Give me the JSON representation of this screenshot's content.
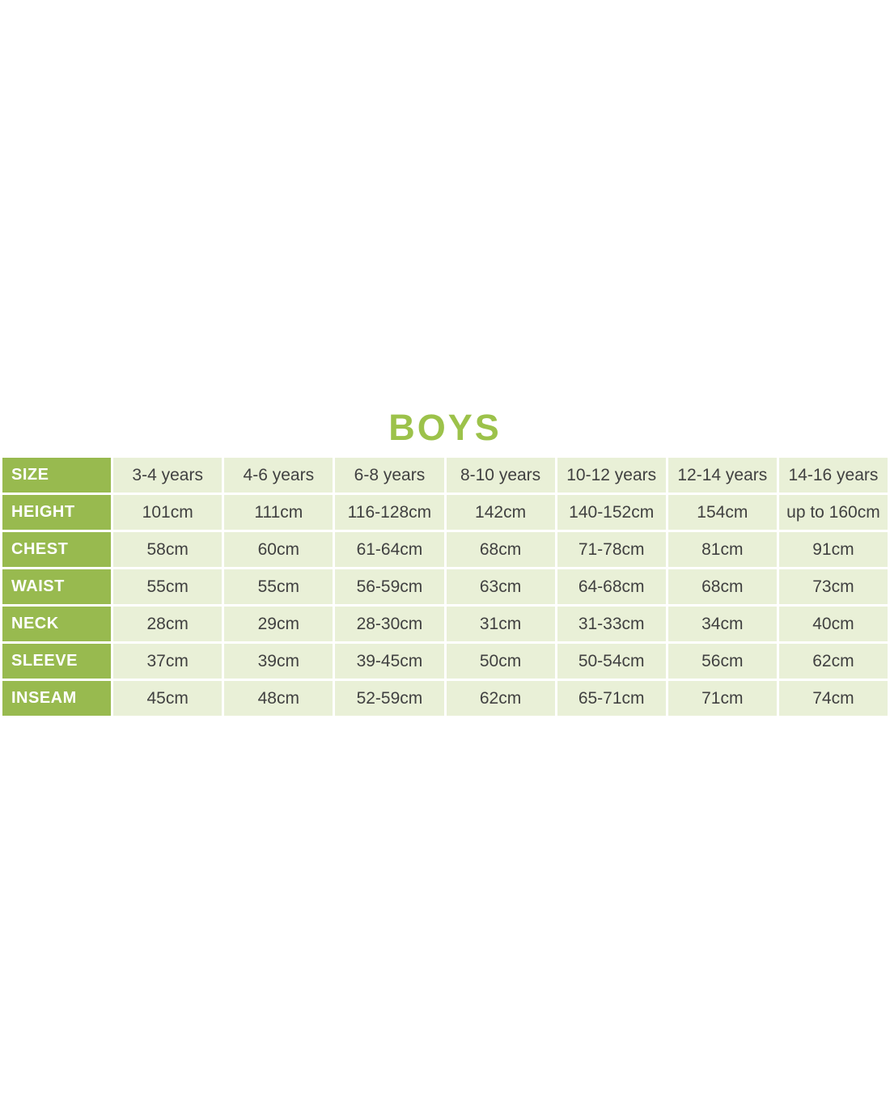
{
  "page": {
    "title": "BOYS"
  },
  "colors": {
    "title_green": "#9cc24a",
    "header_green": "#98ba4f",
    "cell_background": "#e9f0d7",
    "cell_text": "#414141",
    "label_text": "#ffffff",
    "gap_white": "#ffffff"
  },
  "size_chart": {
    "rows": [
      {
        "label": "SIZE",
        "values": [
          "3-4 years",
          "4-6 years",
          "6-8 years",
          "8-10 years",
          "10-12 years",
          "12-14 years",
          "14-16 years"
        ]
      },
      {
        "label": "HEIGHT",
        "values": [
          "101cm",
          "111cm",
          "116-128cm",
          "142cm",
          "140-152cm",
          "154cm",
          "up to 160cm"
        ]
      },
      {
        "label": "CHEST",
        "values": [
          "58cm",
          "60cm",
          "61-64cm",
          "68cm",
          "71-78cm",
          "81cm",
          "91cm"
        ]
      },
      {
        "label": "WAIST",
        "values": [
          "55cm",
          "55cm",
          "56-59cm",
          "63cm",
          "64-68cm",
          "68cm",
          "73cm"
        ]
      },
      {
        "label": "NECK",
        "values": [
          "28cm",
          "29cm",
          "28-30cm",
          "31cm",
          "31-33cm",
          "34cm",
          "40cm"
        ]
      },
      {
        "label": "SLEEVE",
        "values": [
          "37cm",
          "39cm",
          "39-45cm",
          "50cm",
          "50-54cm",
          "56cm",
          "62cm"
        ]
      },
      {
        "label": "INSEAM",
        "values": [
          "45cm",
          "48cm",
          "52-59cm",
          "62cm",
          "65-71cm",
          "71cm",
          "74cm"
        ]
      }
    ]
  }
}
